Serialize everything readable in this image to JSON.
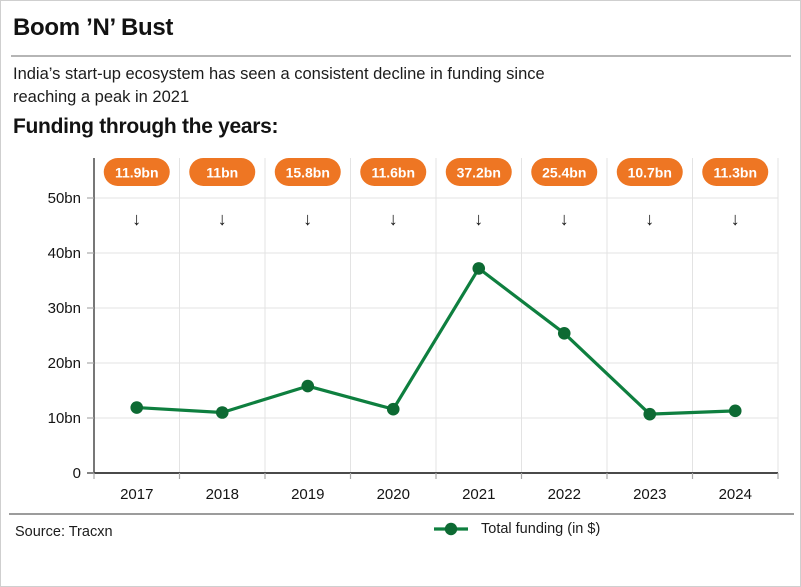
{
  "header": {
    "title": "Boom ’N’ Bust",
    "subtitle": "India’s start-up ecosystem has seen a consistent decline in funding since reaching a peak in 2021",
    "section_heading": "Funding through the years:"
  },
  "chart_data": {
    "type": "line",
    "title": "Funding through the years",
    "categories": [
      "2017",
      "2018",
      "2019",
      "2020",
      "2021",
      "2022",
      "2023",
      "2024"
    ],
    "series": [
      {
        "name": "Total funding (in $)",
        "values": [
          11.9,
          11,
          15.8,
          11.6,
          37.2,
          25.4,
          10.7,
          11.3
        ]
      }
    ],
    "value_labels": [
      "11.9bn",
      "11bn",
      "15.8bn",
      "11.6bn",
      "37.2bn",
      "25.4bn",
      "10.7bn",
      "11.3bn"
    ],
    "y_tick_labels": [
      "0",
      "10bn",
      "20bn",
      "30bn",
      "40bn",
      "50bn"
    ],
    "ylim": [
      0,
      50
    ],
    "grid": true,
    "legend_position": "bottom-center",
    "arrow_glyph": "↓",
    "colors": {
      "line": "#0e7f3f",
      "marker": "#0d6a33",
      "badge": "#ee7623",
      "badge_text": "#ffffff",
      "gridline": "#e3e3e3",
      "axis": "#4a4a4a",
      "tick": "#a9a9a9",
      "label": "#141414"
    }
  },
  "footer": {
    "source": "Source: Tracxn",
    "legend_label": "Total funding (in $)"
  }
}
